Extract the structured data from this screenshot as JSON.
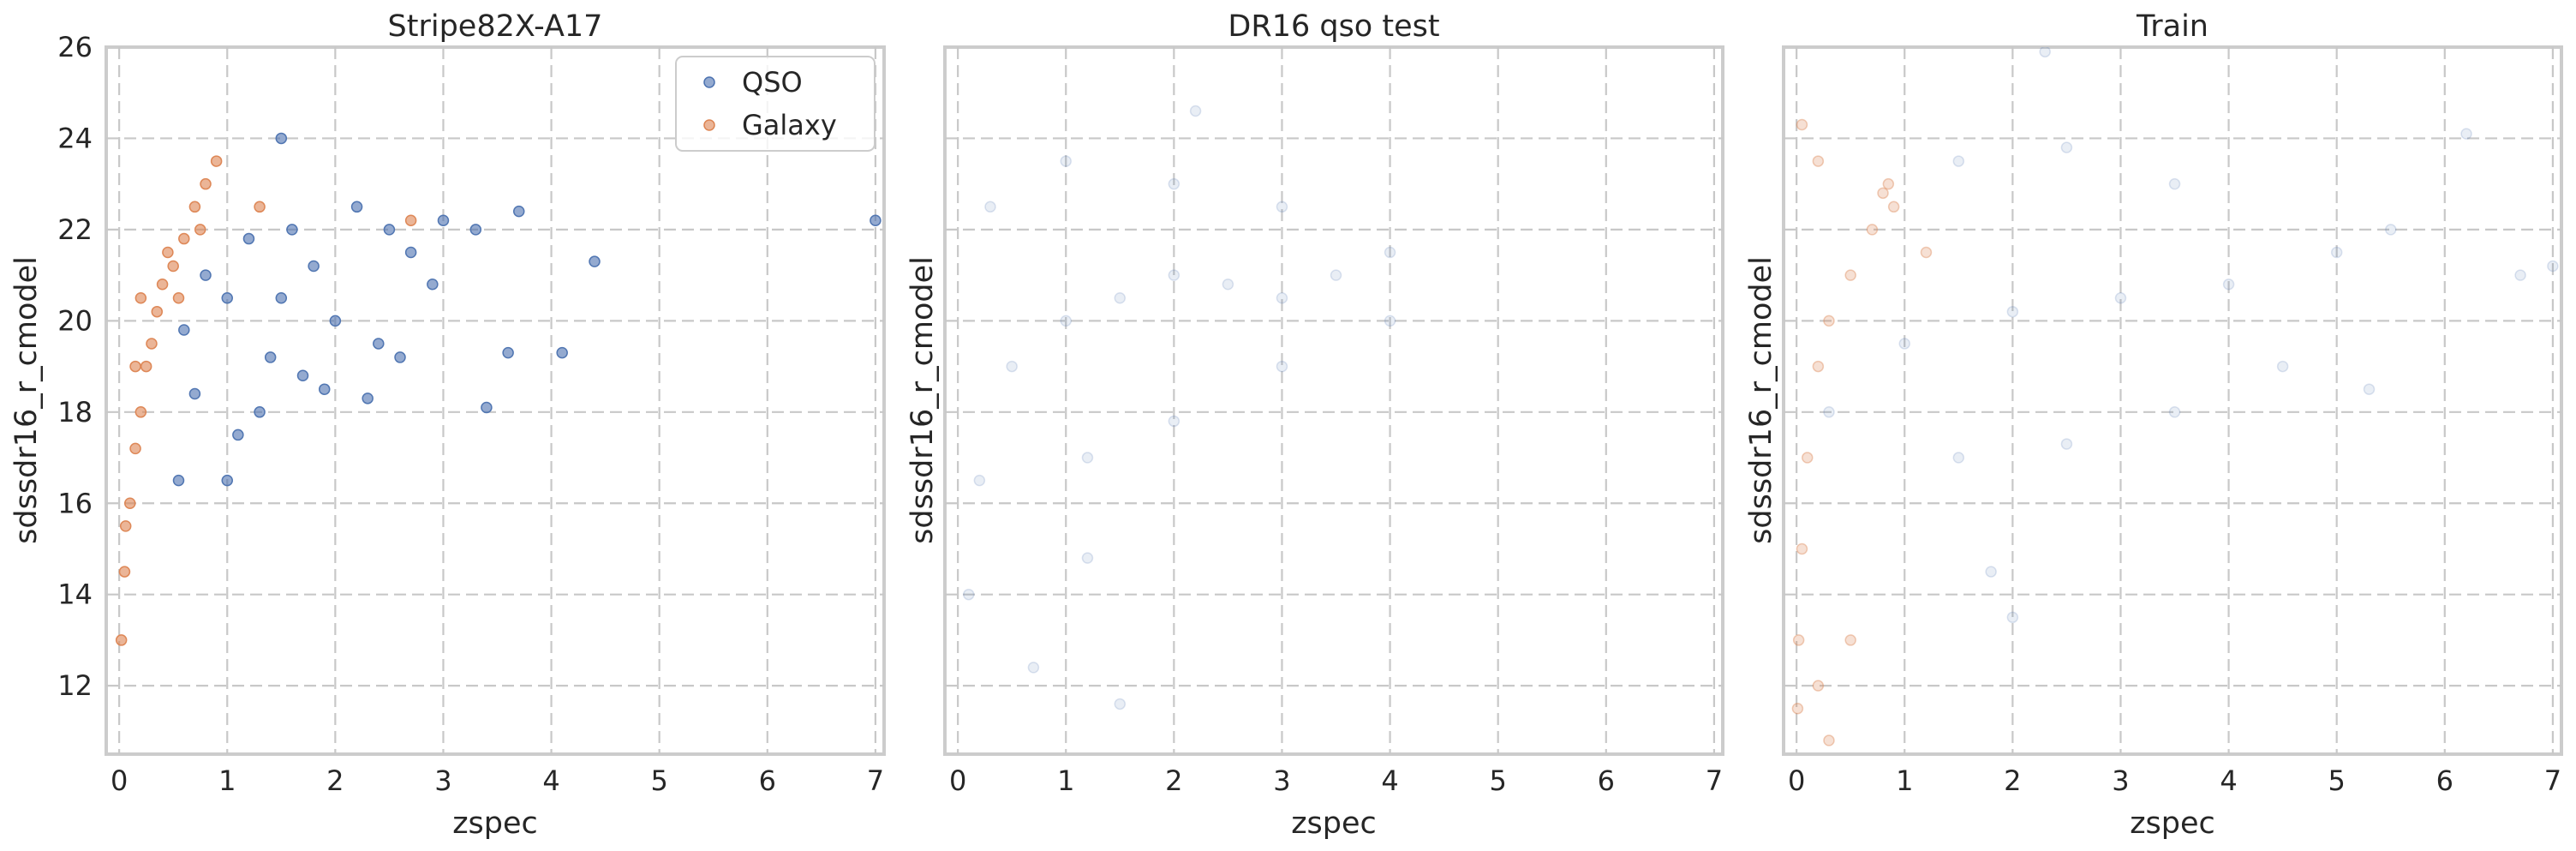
{
  "colors": {
    "qso": "#4c72b0",
    "galaxy": "#dd8452"
  },
  "legend": {
    "placement": "top-right",
    "entries": [
      "QSO",
      "Galaxy"
    ]
  },
  "chart_data": [
    {
      "type": "scatter",
      "title": "Stripe82X-A17",
      "xlabel": "zspec",
      "ylabel": "sdssdr16_r_cmodel",
      "xlim": [
        -0.12,
        7.08
      ],
      "ylim": [
        10.5,
        26
      ],
      "xticks": [
        "0",
        "1",
        "2",
        "3",
        "4",
        "5",
        "6",
        "7"
      ],
      "yticks": [
        "12",
        "14",
        "16",
        "18",
        "20",
        "22",
        "24",
        "26"
      ],
      "grid": true,
      "legend": true,
      "series": [
        {
          "name": "QSO",
          "color": "#4c72b0",
          "alpha": 0.6,
          "points": [
            [
              0.6,
              19.8
            ],
            [
              0.8,
              21
            ],
            [
              1,
              20.5
            ],
            [
              1.2,
              21.8
            ],
            [
              1.4,
              19.2
            ],
            [
              1.5,
              20.5
            ],
            [
              1.6,
              22
            ],
            [
              1.7,
              18.8
            ],
            [
              1.8,
              21.2
            ],
            [
              2,
              20
            ],
            [
              2.2,
              22.5
            ],
            [
              2.4,
              19.5
            ],
            [
              2.5,
              22
            ],
            [
              2.7,
              21.5
            ],
            [
              2.9,
              20.8
            ],
            [
              3,
              22.2
            ],
            [
              3.3,
              22
            ],
            [
              3.7,
              22.4
            ],
            [
              0.7,
              18.4
            ],
            [
              1.1,
              17.5
            ],
            [
              1.3,
              18
            ],
            [
              1.5,
              24
            ],
            [
              1.9,
              18.5
            ],
            [
              2.3,
              18.3
            ],
            [
              2.6,
              19.2
            ],
            [
              3.4,
              18.1
            ],
            [
              3.6,
              19.3
            ],
            [
              4.1,
              19.3
            ],
            [
              4.4,
              21.3
            ],
            [
              1,
              16.5
            ],
            [
              0.55,
              16.5
            ],
            [
              7,
              22.2
            ]
          ]
        },
        {
          "name": "Galaxy",
          "color": "#dd8452",
          "alpha": 0.6,
          "points": [
            [
              0.02,
              13
            ],
            [
              0.05,
              14.5
            ],
            [
              0.06,
              15.5
            ],
            [
              0.1,
              16
            ],
            [
              0.15,
              17.2
            ],
            [
              0.2,
              18
            ],
            [
              0.25,
              19
            ],
            [
              0.3,
              19.5
            ],
            [
              0.35,
              20.2
            ],
            [
              0.4,
              20.8
            ],
            [
              0.5,
              21.2
            ],
            [
              0.6,
              21.8
            ],
            [
              0.7,
              22.5
            ],
            [
              0.8,
              23
            ],
            [
              0.9,
              23.5
            ],
            [
              0.75,
              22
            ],
            [
              0.55,
              20.5
            ],
            [
              0.45,
              21.5
            ],
            [
              1.3,
              22.5
            ],
            [
              2.7,
              22.2
            ],
            [
              0.2,
              20.5
            ],
            [
              0.15,
              19
            ]
          ]
        }
      ]
    },
    {
      "type": "scatter",
      "title": "DR16 qso test",
      "xlabel": "zspec",
      "ylabel": "sdssdr16_r_cmodel",
      "xlim": [
        -0.12,
        7.08
      ],
      "ylim": [
        10.5,
        26
      ],
      "xticks": [
        "0",
        "1",
        "2",
        "3",
        "4",
        "5",
        "6",
        "7"
      ],
      "grid": true,
      "series": [
        {
          "name": "QSO",
          "color": "#4c72b0",
          "alpha": 0.12,
          "points": [
            [
              0.1,
              14
            ],
            [
              0.2,
              16.5
            ],
            [
              0.5,
              19
            ],
            [
              1,
              20
            ],
            [
              1.5,
              20.5
            ],
            [
              2,
              21
            ],
            [
              2.5,
              20.8
            ],
            [
              3,
              20.5
            ],
            [
              3.5,
              21
            ],
            [
              4,
              21.5
            ],
            [
              0.3,
              22.5
            ],
            [
              1,
              23.5
            ],
            [
              2,
              23
            ],
            [
              3,
              22.5
            ],
            [
              1.2,
              17
            ],
            [
              2,
              17.8
            ],
            [
              3,
              19
            ],
            [
              4,
              20
            ],
            [
              0.7,
              12.4
            ],
            [
              1.5,
              11.6
            ],
            [
              1.2,
              14.8
            ],
            [
              2.2,
              24.6
            ]
          ]
        }
      ]
    },
    {
      "type": "scatter",
      "title": "Train",
      "xlabel": "zspec",
      "ylabel": "sdssdr16_r_cmodel",
      "xlim": [
        -0.12,
        7.08
      ],
      "ylim": [
        10.5,
        26
      ],
      "xticks": [
        "0",
        "1",
        "2",
        "3",
        "4",
        "5",
        "6",
        "7"
      ],
      "grid": true,
      "series": [
        {
          "name": "QSO",
          "color": "#4c72b0",
          "alpha": 0.12,
          "points": [
            [
              0.3,
              18
            ],
            [
              1,
              19.5
            ],
            [
              2,
              20.2
            ],
            [
              3,
              20.5
            ],
            [
              4,
              20.8
            ],
            [
              5,
              21.5
            ],
            [
              1.5,
              23.5
            ],
            [
              2.5,
              23.8
            ],
            [
              3.5,
              23
            ],
            [
              1.5,
              17
            ],
            [
              2.5,
              17.3
            ],
            [
              3.5,
              18
            ],
            [
              4.5,
              19
            ],
            [
              5.5,
              22
            ],
            [
              6.2,
              24.1
            ],
            [
              6.7,
              21
            ],
            [
              7,
              21.2
            ],
            [
              5.3,
              18.5
            ],
            [
              2,
              13.5
            ],
            [
              1.8,
              14.5
            ],
            [
              2.3,
              25.9
            ]
          ]
        },
        {
          "name": "Galaxy",
          "color": "#dd8452",
          "alpha": 0.25,
          "points": [
            [
              0.01,
              11.5
            ],
            [
              0.02,
              13
            ],
            [
              0.05,
              15
            ],
            [
              0.1,
              17
            ],
            [
              0.2,
              19
            ],
            [
              0.3,
              20
            ],
            [
              0.5,
              21
            ],
            [
              0.7,
              22
            ],
            [
              0.85,
              23
            ],
            [
              0.9,
              22.5
            ],
            [
              0.05,
              24.3
            ],
            [
              0.2,
              23.5
            ],
            [
              0.3,
              10.8
            ],
            [
              0.2,
              12
            ],
            [
              0.5,
              13
            ],
            [
              0.8,
              22.8
            ],
            [
              1.2,
              21.5
            ]
          ]
        }
      ]
    }
  ]
}
